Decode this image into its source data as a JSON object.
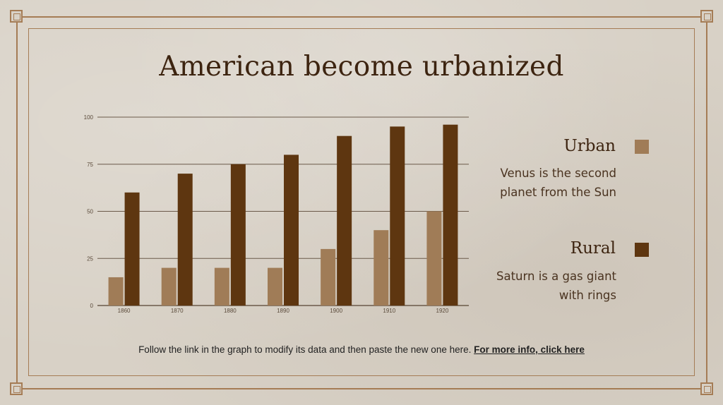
{
  "slide": {
    "title": "American become urbanized",
    "footer_text": "Follow the link in the graph to modify its data and then paste the new one here.",
    "footer_link": "For more info, click here"
  },
  "legend": [
    {
      "title": "Urban",
      "desc_line1": "Venus is the second",
      "desc_line2": "planet from the Sun",
      "color": "#a07c57"
    },
    {
      "title": "Rural",
      "desc_line1": "Saturn is a gas giant",
      "desc_line2": "with rings",
      "color": "#5e3610"
    }
  ],
  "colors": {
    "border": "#a57c55",
    "urban": "#a07c57",
    "rural": "#5e3610",
    "grid": "#6b5a4a"
  },
  "chart_data": {
    "type": "bar",
    "categories": [
      "1860",
      "1870",
      "1880",
      "1890",
      "1900",
      "1910",
      "1920"
    ],
    "series": [
      {
        "name": "Urban",
        "values": [
          15,
          20,
          20,
          20,
          30,
          40,
          50
        ]
      },
      {
        "name": "Rural",
        "values": [
          60,
          70,
          75,
          80,
          90,
          95,
          96
        ]
      }
    ],
    "yticks": [
      "0",
      "25",
      "50",
      "75",
      "100"
    ],
    "ylim": [
      0,
      100
    ],
    "grid": true,
    "legend_placement": "right"
  }
}
